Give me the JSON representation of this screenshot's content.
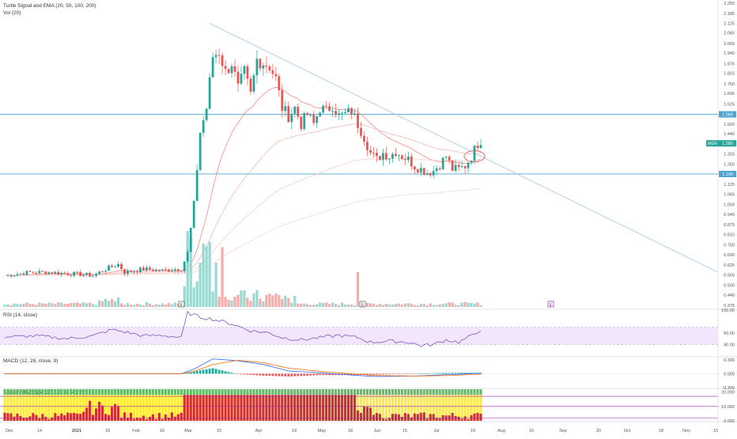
{
  "panes": {
    "main": {
      "legend_title": "Turtle Signal and EMA (20, 50, 100, 200)",
      "legend_sub": "Vol (20)",
      "price_labels": [
        "2.250",
        "2.185",
        "2.125",
        "2.065",
        "2.000",
        "1.940",
        "1.875",
        "1.815",
        "1.750",
        "1.690",
        "1.625",
        "1.560",
        "1.500",
        "1.440",
        "1.380",
        "1.315",
        "1.250",
        "1.190",
        "1.125",
        "1.065",
        "1.000",
        "0.940",
        "0.875",
        "0.815",
        "0.750",
        "0.690",
        "0.625",
        "0.565",
        "0.500",
        "0.440",
        "0.375"
      ],
      "badges": {
        "upper": "1.560",
        "current_sym": "MGN",
        "current": "1.380",
        "lower": "1.190"
      },
      "markers": [
        "E",
        "E",
        "E"
      ]
    },
    "rsi": {
      "title": "RSI (14, close)",
      "labels": [
        "100.00",
        "60.00",
        "40.00"
      ],
      "top_label": "100.00"
    },
    "macd": {
      "title": "MACD (12, 26, close, 9)",
      "labels": [
        "0.300",
        "0.000",
        "-0.300"
      ]
    },
    "third": {
      "title": "SqueezeMACD (50, 20, 1.5, 80, 40, 20)",
      "labels": [
        "20.000",
        "10.000",
        "0.000"
      ]
    }
  },
  "time_axis": [
    "Dec",
    "14",
    "2021",
    "18",
    "Feb",
    "16",
    "Mar",
    "15",
    "Apr",
    "19",
    "May",
    "18",
    "Jun",
    "15",
    "Jul",
    "19",
    "Aug",
    "16",
    "Sep",
    "20",
    "Oct",
    "18",
    "Nov",
    "15"
  ],
  "colors": {
    "up": "#26a69a",
    "down": "#ef5350",
    "ema": "#f3b0ae",
    "trend": "#a9cde9",
    "rsi_line": "#7e57c2",
    "rsi_band": "#f3e5fb",
    "macd": "#2962ff",
    "signal": "#ff6d00",
    "squeeze_green": "#66bb6a",
    "squeeze_yellow": "#ffeb3b",
    "squeeze_red": "#d32f2f",
    "hline": "#4fa3d1"
  },
  "chart_data": [
    {
      "type": "candlestick",
      "title": "Turtle Signal and EMA (20, 50, 100, 200)",
      "y_range": [
        0.375,
        2.25
      ],
      "x_range_labels": [
        "Dec 2020",
        "Nov 15 2021"
      ],
      "horizontal_lines": [
        1.56,
        1.19
      ],
      "trendline": {
        "from": {
          "date": "Mar 10 2021",
          "price": 2.125
        },
        "to": {
          "date": "Nov 15 2021",
          "price": 0.58
        }
      },
      "last_price": 1.38,
      "approx_close_path": [
        {
          "t": "Dec",
          "v": 0.56
        },
        {
          "t": "14",
          "v": 0.59
        },
        {
          "t": "2021",
          "v": 0.56
        },
        {
          "t": "18",
          "v": 0.63
        },
        {
          "t": "Feb",
          "v": 0.6
        },
        {
          "t": "16",
          "v": 0.6
        },
        {
          "t": "Mar",
          "v": 1.0
        },
        {
          "t": "Mar 8",
          "v": 1.6
        },
        {
          "t": "15",
          "v": 1.9
        },
        {
          "t": "Apr",
          "v": 1.87
        },
        {
          "t": "Apr 10",
          "v": 1.56
        },
        {
          "t": "19",
          "v": 1.5
        },
        {
          "t": "May",
          "v": 1.56
        },
        {
          "t": "May 10",
          "v": 1.6
        },
        {
          "t": "18",
          "v": 1.56
        },
        {
          "t": "Jun",
          "v": 1.3
        },
        {
          "t": "15",
          "v": 1.3
        },
        {
          "t": "Jul",
          "v": 1.2
        },
        {
          "t": "Jul 10",
          "v": 1.25
        },
        {
          "t": "19",
          "v": 1.38
        }
      ]
    },
    {
      "type": "bar",
      "title": "Vol (20)",
      "note": "volume bars under main pane; tallest bars in early March"
    },
    {
      "type": "line",
      "title": "RSI (14, close)",
      "y_range": [
        20,
        100
      ],
      "band": [
        40,
        70
      ],
      "approx_values": [
        {
          "t": "Dec",
          "v": 53
        },
        {
          "t": "14",
          "v": 55
        },
        {
          "t": "2021",
          "v": 50
        },
        {
          "t": "18",
          "v": 66
        },
        {
          "t": "Feb",
          "v": 55
        },
        {
          "t": "16",
          "v": 55
        },
        {
          "t": "Mar",
          "v": 95
        },
        {
          "t": "15",
          "v": 82
        },
        {
          "t": "Apr",
          "v": 62
        },
        {
          "t": "19",
          "v": 48
        },
        {
          "t": "May",
          "v": 55
        },
        {
          "t": "18",
          "v": 55
        },
        {
          "t": "Jun",
          "v": 44
        },
        {
          "t": "15",
          "v": 45
        },
        {
          "t": "Jul",
          "v": 38
        },
        {
          "t": "Jul 10",
          "v": 48
        },
        {
          "t": "19",
          "v": 66
        }
      ]
    },
    {
      "type": "line",
      "title": "MACD (12, 26, close, 9)",
      "y_range": [
        -0.3,
        0.35
      ],
      "series": [
        {
          "name": "MACD",
          "approx_values": [
            {
              "t": "Dec",
              "v": 0.0
            },
            {
              "t": "Feb",
              "v": 0.0
            },
            {
              "t": "Mar",
              "v": 0.1
            },
            {
              "t": "15",
              "v": 0.32
            },
            {
              "t": "Apr",
              "v": 0.22
            },
            {
              "t": "19",
              "v": 0.05
            },
            {
              "t": "Jun",
              "v": -0.06
            },
            {
              "t": "Jul",
              "v": -0.05
            },
            {
              "t": "19",
              "v": 0.01
            }
          ]
        },
        {
          "name": "Signal",
          "approx_values": [
            {
              "t": "Dec",
              "v": 0.0
            },
            {
              "t": "Feb",
              "v": 0.0
            },
            {
              "t": "Mar",
              "v": 0.05
            },
            {
              "t": "15",
              "v": 0.27
            },
            {
              "t": "Apr",
              "v": 0.25
            },
            {
              "t": "19",
              "v": 0.08
            },
            {
              "t": "Jun",
              "v": -0.04
            },
            {
              "t": "Jul",
              "v": -0.05
            },
            {
              "t": "19",
              "v": -0.01
            }
          ]
        }
      ]
    },
    {
      "type": "bar",
      "title": "SqueezeMACD (50, 20, 1.5, 80, 40, 20)",
      "y_range": [
        0,
        22
      ],
      "note": "stacked green/yellow/red columns per bar; solid red from Mar to Jun"
    }
  ]
}
